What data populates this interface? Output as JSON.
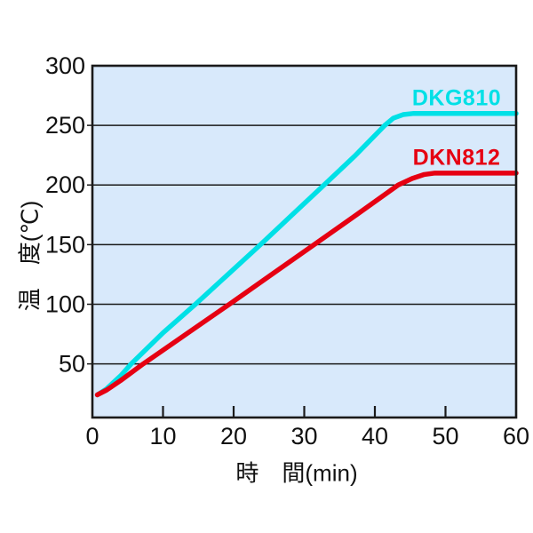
{
  "chart_data": {
    "type": "line",
    "title": "",
    "xlabel": "時　間(min)",
    "ylabel": "温　度(℃)",
    "x_axis": {
      "min": 0,
      "max": 60,
      "ticks": [
        0,
        10,
        20,
        30,
        40,
        50,
        60
      ],
      "unit": "min"
    },
    "y_axis": {
      "top": 300,
      "bottom": 5,
      "ticks": [
        300,
        250,
        200,
        150,
        100,
        50
      ],
      "gridline_values": [
        250,
        200,
        150,
        100,
        50
      ],
      "unit": "°C"
    },
    "grid": "horizontal",
    "legend_position": "labels-near-lines",
    "colors": {
      "plot_background": "#d8e9fb",
      "grid": "#1a1a1a",
      "border": "#1a1a1a",
      "text": "#111111"
    },
    "series": [
      {
        "name": "DKG810",
        "color": "#00e0e6",
        "ramp_rate_c_per_min": 5.5,
        "plateau_c": 260,
        "points": [
          [
            0.7,
            24
          ],
          [
            2,
            29
          ],
          [
            4,
            40
          ],
          [
            5.5,
            50
          ],
          [
            10,
            76
          ],
          [
            14.6,
            100
          ],
          [
            19.2,
            125
          ],
          [
            23.8,
            150
          ],
          [
            28.3,
            175
          ],
          [
            32.8,
            200
          ],
          [
            37.1,
            224
          ],
          [
            41.4,
            250
          ],
          [
            42.6,
            256
          ],
          [
            44,
            259
          ],
          [
            45.5,
            260
          ],
          [
            60,
            260
          ]
        ]
      },
      {
        "name": "DKN812",
        "color": "#e60012",
        "ramp_rate_c_per_min": 4.2,
        "plateau_c": 210,
        "points": [
          [
            0.7,
            24
          ],
          [
            2,
            28
          ],
          [
            4,
            36
          ],
          [
            7.2,
            50
          ],
          [
            13.3,
            75
          ],
          [
            19.4,
            100
          ],
          [
            25.4,
            125
          ],
          [
            31.4,
            150
          ],
          [
            37.4,
            175
          ],
          [
            43.3,
            200
          ],
          [
            45.3,
            205.5
          ],
          [
            47,
            208.8
          ],
          [
            48.5,
            210
          ],
          [
            60,
            210
          ]
        ]
      }
    ]
  }
}
